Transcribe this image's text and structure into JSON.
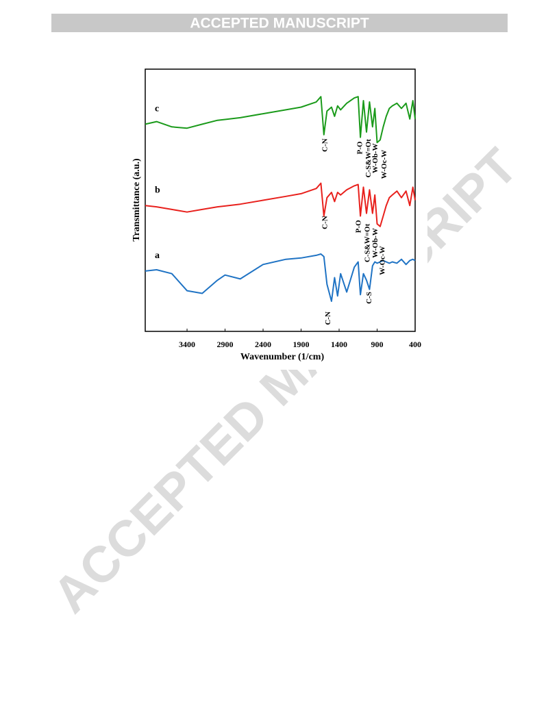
{
  "header": "ACCEPTED MANUSCRIPT",
  "watermark": "ACCEPTED MANUSCRIPT",
  "chart_data": {
    "type": "line",
    "xlabel": "Wavenumber (1/cm)",
    "ylabel": "Transmittance (a.u.)",
    "xlim": [
      3950,
      400
    ],
    "xticks": [
      3400,
      2900,
      2400,
      1900,
      1400,
      900,
      400
    ],
    "ylim": [
      0,
      100
    ],
    "x": [
      3950,
      3800,
      3600,
      3400,
      3200,
      3000,
      2900,
      2700,
      2400,
      2100,
      1900,
      1700,
      1640,
      1600,
      1560,
      1500,
      1460,
      1420,
      1380,
      1300,
      1200,
      1150,
      1120,
      1080,
      1040,
      1000,
      960,
      930,
      900,
      860,
      820,
      780,
      740,
      700,
      640,
      580,
      520,
      470,
      430,
      400
    ],
    "series": [
      {
        "name": "c",
        "color": "#1a9a1a",
        "values": [
          79,
          80,
          78,
          77.5,
          79,
          80.5,
          80.8,
          81.5,
          83,
          84.5,
          85.5,
          87.5,
          89.5,
          75,
          84,
          85.5,
          82,
          86,
          84.5,
          87,
          89,
          89.5,
          74,
          88,
          76,
          87.5,
          78,
          85,
          72,
          73,
          78,
          82,
          85,
          86,
          87,
          85,
          87,
          81,
          88,
          81
        ]
      },
      {
        "name": "b",
        "color": "#e8201c",
        "values": [
          48,
          47.5,
          46.5,
          45.5,
          46.5,
          47.5,
          47.8,
          48.5,
          50,
          51.5,
          52.5,
          54.5,
          56.5,
          44,
          51,
          53,
          49.5,
          53,
          52,
          54,
          55.5,
          56,
          44,
          55,
          45,
          54,
          45,
          52,
          41,
          40,
          44,
          48,
          51,
          52,
          53.5,
          51,
          53.5,
          48,
          55,
          50
        ]
      },
      {
        "name": "a",
        "color": "#1f73c4",
        "values": [
          23,
          23.5,
          22,
          15.5,
          14.5,
          19.5,
          21.5,
          20,
          25.5,
          27.5,
          28,
          29,
          29.5,
          28.5,
          18,
          11.5,
          20.5,
          13.5,
          22,
          15,
          24.5,
          26.5,
          14,
          22,
          19.5,
          16,
          25,
          26.5,
          26,
          26.5,
          27,
          26.5,
          26,
          26.5,
          26,
          27.5,
          25.5,
          27,
          27.5,
          27
        ]
      }
    ],
    "annotations": [
      {
        "text": "C-N",
        "x": 1580,
        "y": 71
      },
      {
        "text": "P-O",
        "x": 1120,
        "y": 70
      },
      {
        "text": "C-S&W=Ot",
        "x": 1010,
        "y": 66
      },
      {
        "text": "W-Ob-W",
        "x": 920,
        "y": 66
      },
      {
        "text": "W-Oc-W",
        "x": 800,
        "y": 63.7
      },
      {
        "text": "C-N",
        "x": 1580,
        "y": 41.5
      },
      {
        "text": "P-O",
        "x": 1140,
        "y": 40
      },
      {
        "text": "C-S&W=Ot",
        "x": 1020,
        "y": 33.7
      },
      {
        "text": "W-Ob-W",
        "x": 920,
        "y": 33.7
      },
      {
        "text": "W-Oc-W",
        "x": 825,
        "y": 27
      },
      {
        "text": "C-N",
        "x": 1540,
        "y": 5
      },
      {
        "text": "C-S",
        "x": 1000,
        "y": 12.8
      }
    ]
  }
}
